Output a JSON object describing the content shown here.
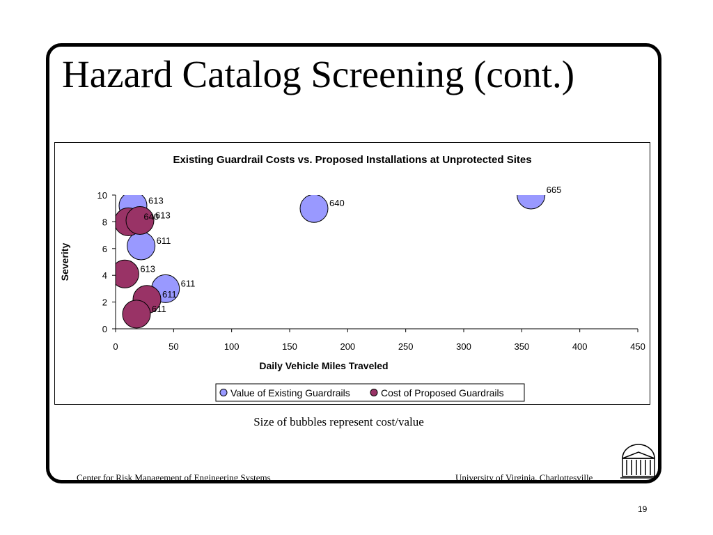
{
  "slide": {
    "title": "Hazard Catalog Screening (cont.)",
    "caption": "Size of bubbles represent cost/value",
    "footer_left": "Center for Risk Management of Engineering Systems",
    "footer_right": "University of Virginia, Charlottesville",
    "page_number": "19"
  },
  "chart_data": {
    "type": "scatter",
    "subtype": "bubble",
    "title": "Existing Guardrail Costs vs. Proposed Installations at Unprotected Sites",
    "xlabel": "Daily Vehicle Miles Traveled",
    "ylabel": "Severity",
    "xlim": [
      0,
      450
    ],
    "ylim": [
      0,
      10
    ],
    "x_ticks": [
      0,
      50,
      100,
      150,
      200,
      250,
      300,
      350,
      400,
      450
    ],
    "y_ticks": [
      0,
      2,
      4,
      6,
      8,
      10
    ],
    "legend_position": "bottom",
    "series": [
      {
        "name": "Value of Existing Guardrails",
        "color": "#9999ff",
        "points": [
          {
            "x": 15,
            "y": 9.2,
            "label": "613"
          },
          {
            "x": 171,
            "y": 9.0,
            "label": "640"
          },
          {
            "x": 358,
            "y": 10.0,
            "label": "665"
          },
          {
            "x": 22,
            "y": 6.2,
            "label": "611"
          },
          {
            "x": 43,
            "y": 3.0,
            "label": "611"
          }
        ]
      },
      {
        "name": "Cost of Proposed Guardrails",
        "color": "#993366",
        "points": [
          {
            "x": 11,
            "y": 8.0,
            "label": "640"
          },
          {
            "x": 21,
            "y": 8.1,
            "label": "613"
          },
          {
            "x": 8,
            "y": 4.1,
            "label": "613"
          },
          {
            "x": 27,
            "y": 2.2,
            "label": "611"
          },
          {
            "x": 18,
            "y": 1.1,
            "label": "611"
          }
        ]
      }
    ]
  }
}
